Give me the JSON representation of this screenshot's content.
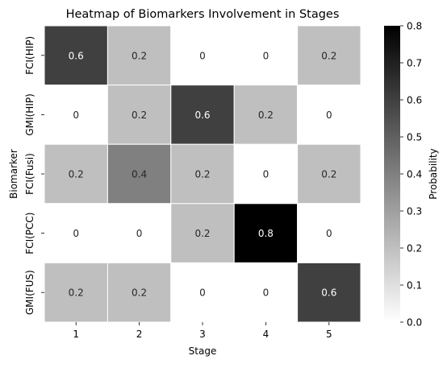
{
  "chart_data": {
    "type": "heatmap",
    "title": "Heatmap of Biomarkers Involvement in Stages",
    "xlabel": "Stage",
    "ylabel": "Biomarker",
    "x_categories": [
      "1",
      "2",
      "3",
      "4",
      "5"
    ],
    "y_categories": [
      "FCI(HIP)",
      "GMI(HIP)",
      "FCI(Fusi)",
      "FCI(PCC)",
      "GMI(FUS)"
    ],
    "values": [
      [
        0.6,
        0.2,
        0,
        0,
        0.2
      ],
      [
        0,
        0.2,
        0.6,
        0.2,
        0
      ],
      [
        0.2,
        0.4,
        0.2,
        0,
        0.2
      ],
      [
        0,
        0,
        0.2,
        0.8,
        0
      ],
      [
        0.2,
        0.2,
        0,
        0,
        0.6
      ]
    ],
    "cell_labels": [
      [
        "0.6",
        "0.2",
        "0",
        "0",
        "0.2"
      ],
      [
        "0",
        "0.2",
        "0.6",
        "0.2",
        "0"
      ],
      [
        "0.2",
        "0.4",
        "0.2",
        "0",
        "0.2"
      ],
      [
        "0",
        "0",
        "0.2",
        "0.8",
        "0"
      ],
      [
        "0.2",
        "0.2",
        "0",
        "0",
        "0.6"
      ]
    ],
    "colorbar": {
      "label": "Probability",
      "vmin": 0.0,
      "vmax": 0.8,
      "ticks": [
        "0.0",
        "0.1",
        "0.2",
        "0.3",
        "0.4",
        "0.5",
        "0.6",
        "0.7",
        "0.8"
      ],
      "colormap": "white-to-black",
      "color_low": "#ffffff",
      "color_high": "#000000"
    },
    "grid_line_color": "#ffffff",
    "grid": true
  }
}
